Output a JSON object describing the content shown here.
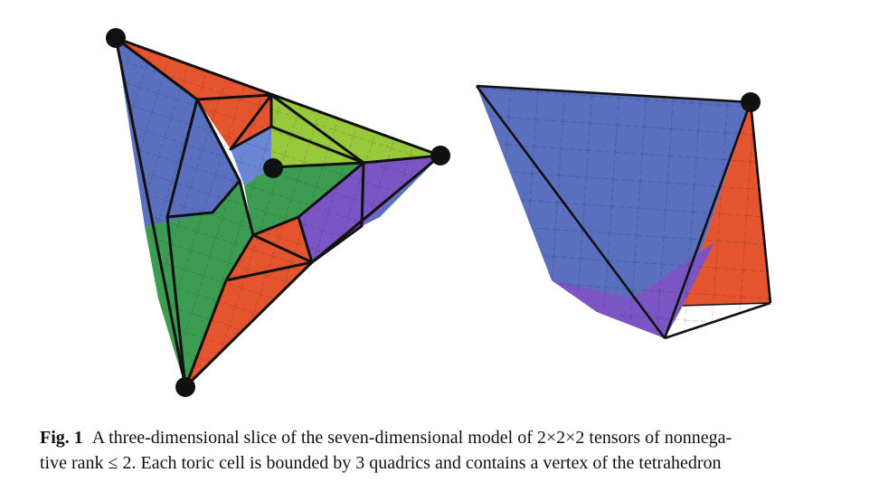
{
  "figure": {
    "label": "Fig. 1",
    "caption_line1": "A three-dimensional slice of the seven-dimensional model of 2×2×2 tensors of nonnega-",
    "caption_line2": "tive rank ≤ 2. Each toric cell is bounded by 3 quadrics and contains a vertex of the tetrahedron"
  },
  "colors": {
    "blue": "#5a6fbe",
    "orange": "#e4552f",
    "green": "#3b9c52",
    "lime": "#98c83c",
    "purple": "#7b55c4",
    "edge": "#111111"
  }
}
